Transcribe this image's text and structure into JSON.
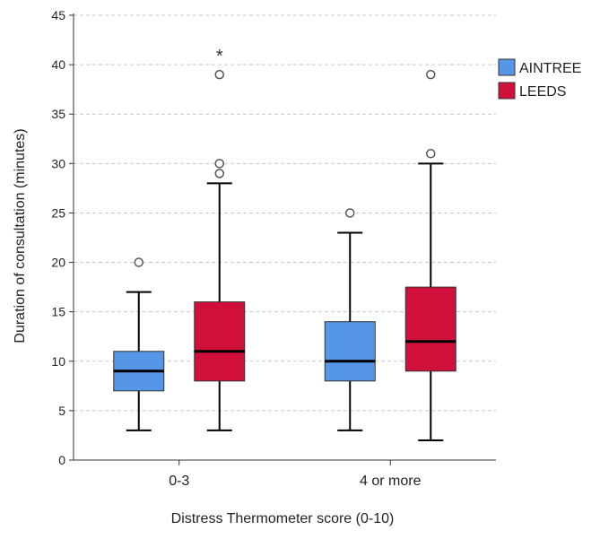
{
  "chart_data": {
    "type": "boxplot",
    "xlabel": "Distress Thermometer score (0-10)",
    "ylabel": "Duration of consultation (minutes)",
    "ylim": [
      0,
      45
    ],
    "yticks": [
      0,
      5,
      10,
      15,
      20,
      25,
      30,
      35,
      40,
      45
    ],
    "grid": "horizontal-dashed",
    "legend_placement": "right",
    "categories": [
      "0-3",
      "4 or more"
    ],
    "series": [
      {
        "name": "AINTREE",
        "color": "#5596e6",
        "boxes": [
          {
            "category": "0-3",
            "min": 3,
            "q1": 7,
            "median": 9,
            "q3": 11,
            "max": 17,
            "outliers": [
              20
            ],
            "extremes": []
          },
          {
            "category": "4 or more",
            "min": 3,
            "q1": 8,
            "median": 10,
            "q3": 14,
            "max": 23,
            "outliers": [
              25
            ],
            "extremes": []
          }
        ]
      },
      {
        "name": "LEEDS",
        "color": "#d0103a",
        "boxes": [
          {
            "category": "0-3",
            "min": 3,
            "q1": 8,
            "median": 11,
            "q3": 16,
            "max": 28,
            "outliers": [
              29,
              30,
              39
            ],
            "extremes": [
              41
            ]
          },
          {
            "category": "4 or more",
            "min": 2,
            "q1": 9,
            "median": 12,
            "q3": 17.5,
            "max": 30,
            "outliers": [
              31,
              39
            ],
            "extremes": []
          }
        ]
      }
    ]
  }
}
